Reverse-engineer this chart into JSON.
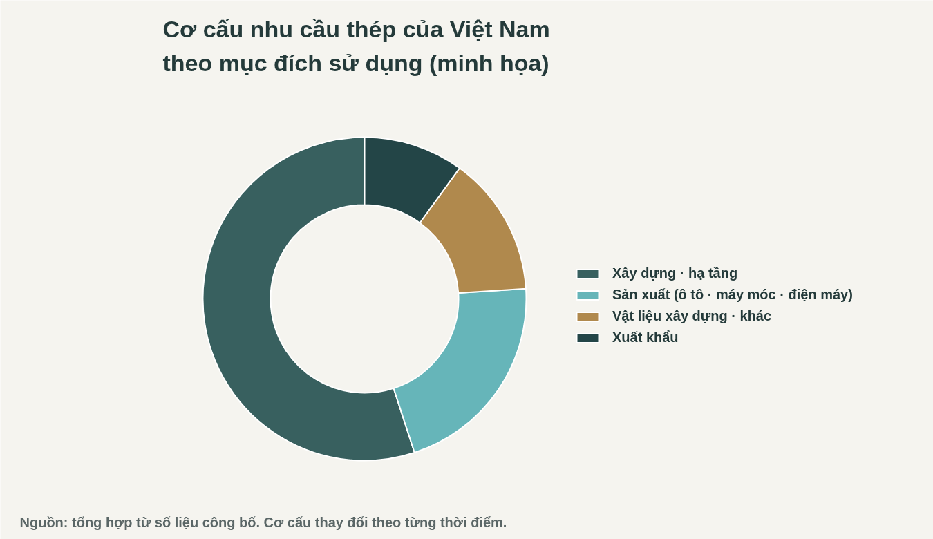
{
  "chart_data": {
    "type": "donut",
    "title": "Cơ cấu nhu cầu thép của Việt Nam\ntheo mục đích sử dụng (minh họa)",
    "categories": [
      "Xây dựng · hạ tầng",
      "Sản xuất (ô tô · máy móc · điện máy)",
      "Vật liệu xây dựng · khác",
      "Xuất khẩu"
    ],
    "values": [
      55,
      21,
      14,
      10
    ],
    "colors": [
      "#38605f",
      "#66b5b9",
      "#b0894d",
      "#234547"
    ],
    "legend": "right",
    "annotations": [
      "Nguồn: tổng hợp từ số liệu công bố. Cơ cấu thay đổi theo từng thời điểm."
    ]
  }
}
